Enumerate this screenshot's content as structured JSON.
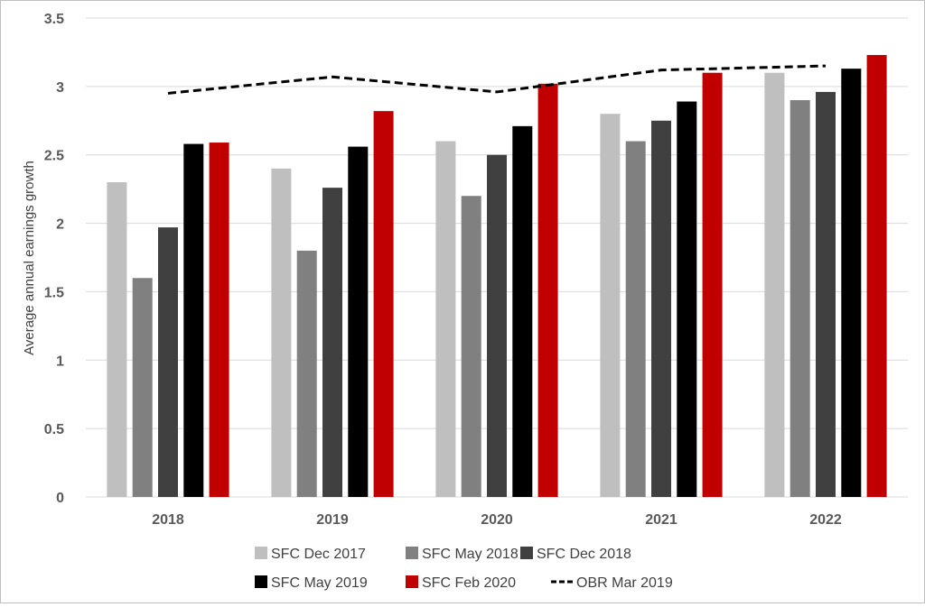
{
  "chart_data": {
    "type": "bar",
    "title": "",
    "xlabel": "",
    "ylabel": "Average annual earnings growth",
    "ylim": [
      0,
      3.5
    ],
    "yticks": [
      "0",
      "0.5",
      "1",
      "1.5",
      "2",
      "2.5",
      "3",
      "3.5"
    ],
    "grid": true,
    "legend_position": "bottom",
    "categories": [
      "2018",
      "2019",
      "2020",
      "2021",
      "2022"
    ],
    "series": [
      {
        "name": "SFC Dec 2017",
        "color": "#bfbfbf",
        "values": [
          2.3,
          2.4,
          2.6,
          2.8,
          3.1
        ]
      },
      {
        "name": "SFC May 2018",
        "color": "#808080",
        "values": [
          1.6,
          1.8,
          2.2,
          2.6,
          2.9
        ]
      },
      {
        "name": "SFC Dec 2018",
        "color": "#404040",
        "values": [
          1.97,
          2.26,
          2.5,
          2.75,
          2.96
        ]
      },
      {
        "name": "SFC May 2019",
        "color": "#000000",
        "values": [
          2.58,
          2.56,
          2.71,
          2.89,
          3.13
        ]
      },
      {
        "name": "SFC Feb 2020",
        "color": "#c00000",
        "values": [
          2.59,
          2.82,
          3.02,
          3.1,
          3.23
        ]
      }
    ],
    "line_series": {
      "name": "OBR Mar 2019",
      "type": "line",
      "style": "dashed",
      "color": "#000000",
      "values": [
        2.95,
        3.07,
        2.96,
        3.12,
        3.15
      ]
    }
  }
}
